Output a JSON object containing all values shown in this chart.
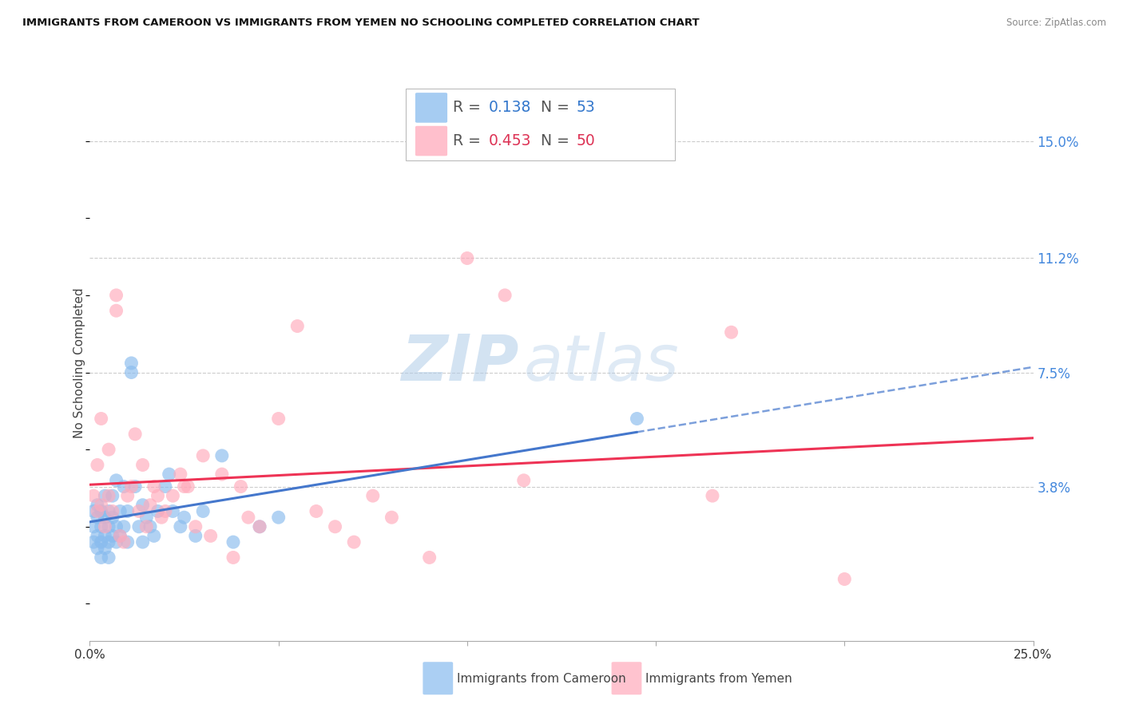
{
  "title": "IMMIGRANTS FROM CAMEROON VS IMMIGRANTS FROM YEMEN NO SCHOOLING COMPLETED CORRELATION CHART",
  "source": "Source: ZipAtlas.com",
  "ylabel": "No Schooling Completed",
  "ytick_labels": [
    "15.0%",
    "11.2%",
    "7.5%",
    "3.8%"
  ],
  "ytick_values": [
    0.15,
    0.112,
    0.075,
    0.038
  ],
  "xlim": [
    0.0,
    0.25
  ],
  "ylim": [
    -0.012,
    0.168
  ],
  "background_color": "#ffffff",
  "grid_color": "#cccccc",
  "blue_scatter_color": "#88bbee",
  "pink_scatter_color": "#ffaabb",
  "blue_line_color": "#4477cc",
  "pink_line_color": "#ee3355",
  "blue_r": "0.138",
  "blue_n": "53",
  "pink_r": "0.453",
  "pink_n": "50",
  "legend1_label": "Immigrants from Cameroon",
  "legend2_label": "Immigrants from Yemen",
  "watermark_zip": "ZIP",
  "watermark_atlas": "atlas",
  "cam_x": [
    0.001,
    0.001,
    0.001,
    0.002,
    0.002,
    0.002,
    0.002,
    0.003,
    0.003,
    0.003,
    0.003,
    0.004,
    0.004,
    0.004,
    0.004,
    0.005,
    0.005,
    0.005,
    0.005,
    0.006,
    0.006,
    0.006,
    0.007,
    0.007,
    0.007,
    0.008,
    0.008,
    0.009,
    0.009,
    0.01,
    0.01,
    0.011,
    0.011,
    0.012,
    0.013,
    0.014,
    0.014,
    0.015,
    0.016,
    0.017,
    0.018,
    0.02,
    0.021,
    0.022,
    0.024,
    0.025,
    0.028,
    0.03,
    0.035,
    0.038,
    0.045,
    0.05,
    0.145
  ],
  "cam_y": [
    0.03,
    0.025,
    0.02,
    0.032,
    0.028,
    0.022,
    0.018,
    0.025,
    0.03,
    0.02,
    0.015,
    0.028,
    0.022,
    0.035,
    0.018,
    0.025,
    0.02,
    0.03,
    0.015,
    0.022,
    0.028,
    0.035,
    0.02,
    0.025,
    0.04,
    0.022,
    0.03,
    0.025,
    0.038,
    0.02,
    0.03,
    0.075,
    0.078,
    0.038,
    0.025,
    0.032,
    0.02,
    0.028,
    0.025,
    0.022,
    0.03,
    0.038,
    0.042,
    0.03,
    0.025,
    0.028,
    0.022,
    0.03,
    0.048,
    0.02,
    0.025,
    0.028,
    0.06
  ],
  "yem_x": [
    0.001,
    0.002,
    0.002,
    0.003,
    0.003,
    0.004,
    0.005,
    0.005,
    0.006,
    0.007,
    0.007,
    0.008,
    0.009,
    0.01,
    0.011,
    0.012,
    0.013,
    0.014,
    0.015,
    0.016,
    0.017,
    0.018,
    0.019,
    0.02,
    0.022,
    0.024,
    0.025,
    0.026,
    0.028,
    0.03,
    0.032,
    0.035,
    0.038,
    0.04,
    0.042,
    0.045,
    0.05,
    0.055,
    0.06,
    0.065,
    0.07,
    0.075,
    0.08,
    0.09,
    0.1,
    0.11,
    0.115,
    0.165,
    0.17,
    0.2
  ],
  "yem_y": [
    0.035,
    0.03,
    0.045,
    0.032,
    0.06,
    0.025,
    0.035,
    0.05,
    0.03,
    0.095,
    0.1,
    0.022,
    0.02,
    0.035,
    0.038,
    0.055,
    0.03,
    0.045,
    0.025,
    0.032,
    0.038,
    0.035,
    0.028,
    0.03,
    0.035,
    0.042,
    0.038,
    0.038,
    0.025,
    0.048,
    0.022,
    0.042,
    0.015,
    0.038,
    0.028,
    0.025,
    0.06,
    0.09,
    0.03,
    0.025,
    0.02,
    0.035,
    0.028,
    0.015,
    0.112,
    0.1,
    0.04,
    0.035,
    0.088,
    0.008
  ]
}
